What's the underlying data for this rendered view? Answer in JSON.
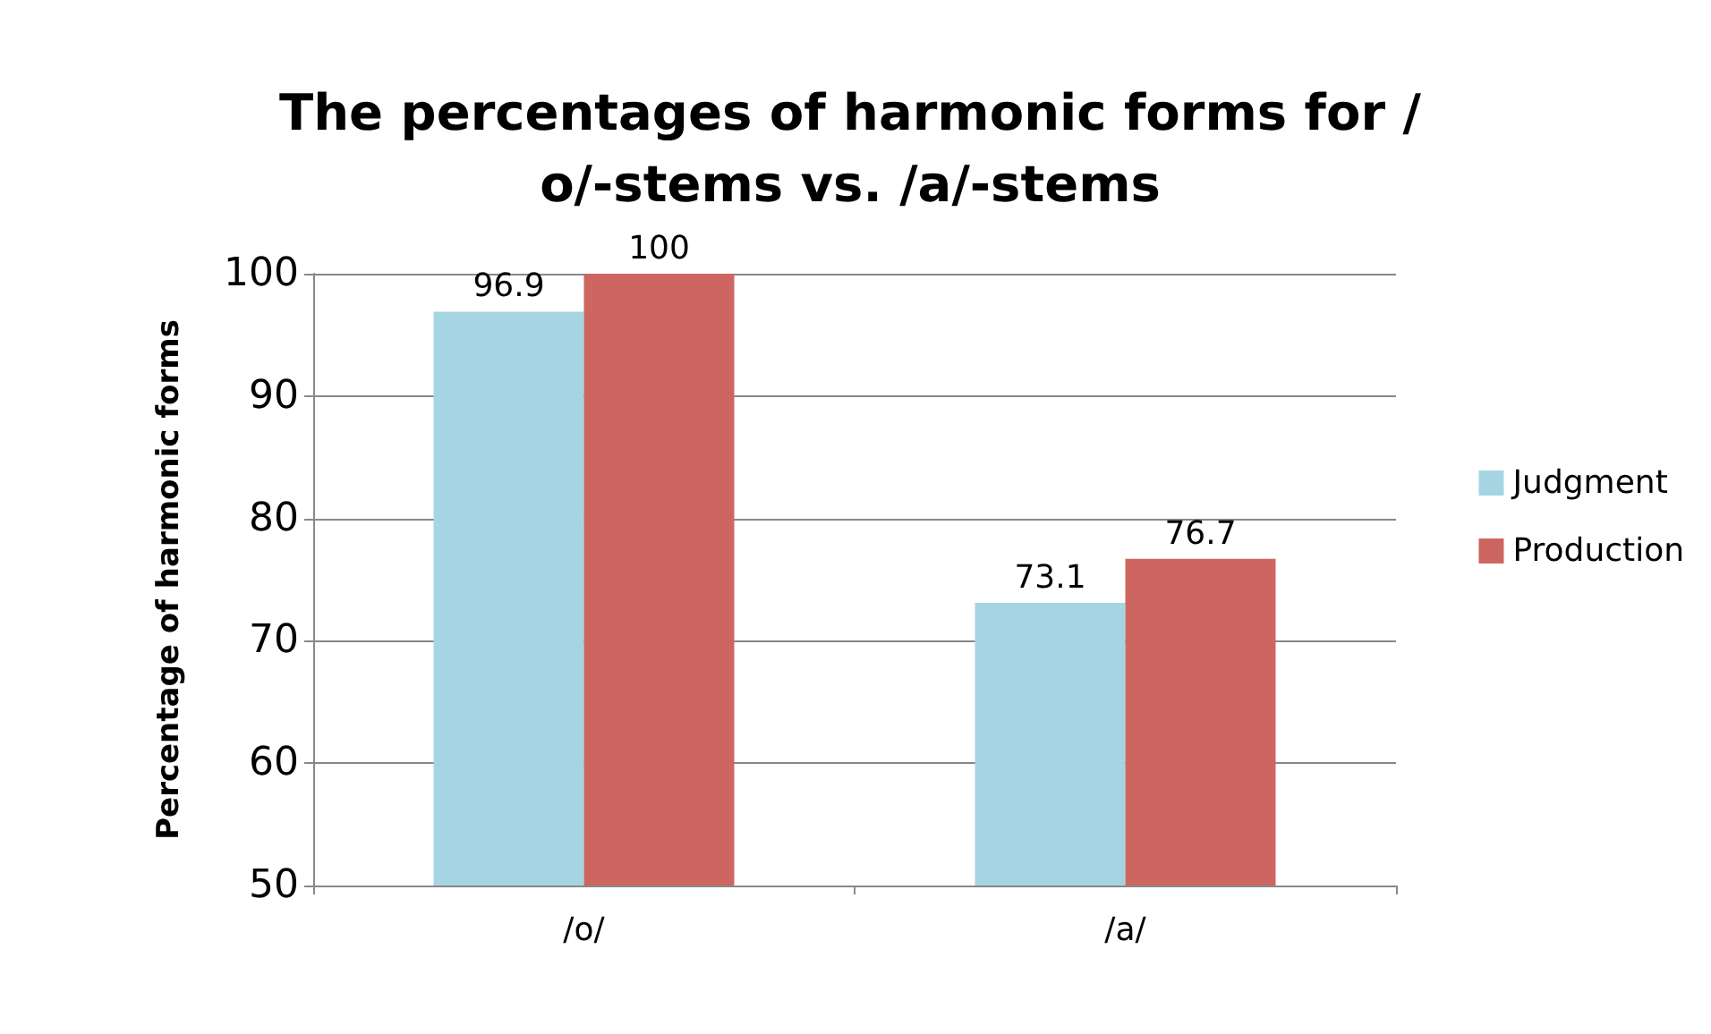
{
  "chart_data": {
    "type": "bar",
    "title": "The percentages of harmonic forms for /o/-stems vs. /a/-stems",
    "ylabel": "Percentage of harmonic forms",
    "categories": [
      "/o/",
      "/a/"
    ],
    "series": [
      {
        "name": "Judgment",
        "color": "#a5d5e2",
        "values": [
          96.9,
          73.1
        ]
      },
      {
        "name": "Production",
        "color": "#cd6660",
        "values": [
          100,
          76.7
        ]
      }
    ],
    "ylim": [
      50,
      100
    ],
    "yticks": [
      50,
      60,
      70,
      80,
      90,
      100
    ],
    "grid": "y",
    "legend": "right",
    "data_labels": true
  }
}
